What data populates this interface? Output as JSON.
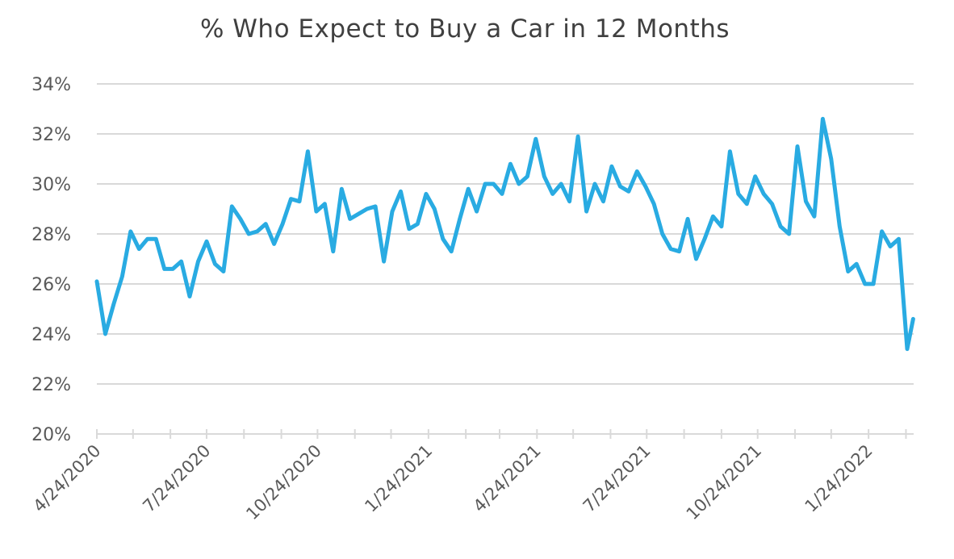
{
  "chart_data": {
    "type": "line",
    "title": "% Who Expect to Buy a Car in 12 Months",
    "xlabel": "",
    "ylabel": "",
    "ylim": [
      20,
      34
    ],
    "y_ticks": [
      "20%",
      "22%",
      "24%",
      "26%",
      "28%",
      "30%",
      "32%",
      "34%"
    ],
    "y_tick_values": [
      20,
      22,
      24,
      26,
      28,
      30,
      32,
      34
    ],
    "x_ticks": [
      "4/24/2020",
      "7/24/2020",
      "10/24/2020",
      "1/24/2021",
      "4/24/2021",
      "7/24/2021",
      "10/24/2021",
      "1/24/2022"
    ],
    "grid": "horizontal",
    "line_color": "#29abe2",
    "series": [
      {
        "x": [
          "4/24/2020",
          "5/1/2020",
          "5/8/2020",
          "5/15/2020",
          "5/22/2020",
          "5/29/2020",
          "6/5/2020",
          "6/12/2020",
          "6/19/2020",
          "6/26/2020",
          "7/3/2020",
          "7/10/2020",
          "7/17/2020",
          "7/24/2020",
          "7/31/2020",
          "8/7/2020",
          "8/14/2020",
          "8/21/2020",
          "8/28/2020",
          "9/4/2020",
          "9/11/2020",
          "9/18/2020",
          "9/25/2020",
          "10/2/2020",
          "10/9/2020",
          "10/16/2020",
          "10/23/2020",
          "10/30/2020",
          "11/6/2020",
          "11/13/2020",
          "11/20/2020",
          "11/27/2020",
          "12/4/2020",
          "12/11/2020",
          "12/18/2020",
          "12/25/2020",
          "1/1/2021",
          "1/8/2021",
          "1/15/2021",
          "1/22/2021",
          "1/29/2021",
          "2/5/2021",
          "2/12/2021",
          "2/19/2021",
          "2/26/2021",
          "3/5/2021",
          "3/12/2021",
          "3/19/2021",
          "3/26/2021",
          "4/2/2021",
          "4/9/2021",
          "4/16/2021",
          "4/23/2021",
          "4/30/2021",
          "5/7/2021",
          "5/14/2021",
          "5/21/2021",
          "5/28/2021",
          "6/4/2021",
          "6/11/2021",
          "6/18/2021",
          "6/25/2021",
          "7/2/2021",
          "7/9/2021",
          "7/16/2021",
          "7/23/2021",
          "7/30/2021",
          "8/6/2021",
          "8/13/2021",
          "8/20/2021",
          "8/27/2021",
          "9/3/2021",
          "9/10/2021",
          "9/17/2021",
          "9/24/2021",
          "10/1/2021",
          "10/8/2021",
          "10/15/2021",
          "10/22/2021",
          "10/29/2021",
          "11/5/2021",
          "11/12/2021",
          "11/19/2021",
          "11/26/2021",
          "12/3/2021",
          "12/10/2021",
          "12/17/2021",
          "12/24/2021",
          "12/31/2021",
          "1/7/2022",
          "1/14/2022",
          "1/21/2022",
          "1/28/2022",
          "2/4/2022",
          "2/11/2022",
          "2/18/2022",
          "2/25/2022",
          "3/2/2022"
        ],
        "values": [
          26.1,
          24.0,
          25.2,
          26.3,
          28.1,
          27.4,
          27.8,
          27.8,
          26.6,
          26.6,
          26.9,
          25.5,
          26.9,
          27.7,
          26.8,
          26.5,
          29.1,
          28.6,
          28.0,
          28.1,
          28.4,
          27.6,
          28.4,
          29.4,
          29.3,
          31.3,
          28.9,
          29.2,
          27.3,
          29.8,
          28.6,
          28.8,
          29.0,
          29.1,
          26.9,
          28.9,
          29.7,
          28.2,
          28.4,
          29.6,
          29.0,
          27.8,
          27.3,
          28.6,
          29.8,
          28.9,
          30.0,
          30.0,
          29.6,
          30.8,
          30.0,
          30.3,
          31.8,
          30.3,
          29.6,
          30.0,
          29.3,
          31.9,
          28.9,
          30.0,
          29.3,
          30.7,
          29.9,
          29.7,
          30.5,
          29.9,
          29.2,
          28.0,
          27.4,
          27.3,
          28.6,
          27.0,
          27.8,
          28.7,
          28.3,
          31.3,
          29.6,
          29.2,
          30.3,
          29.6,
          29.2,
          28.3,
          28.0,
          31.5,
          29.3,
          28.7,
          32.6,
          31.0,
          28.3,
          26.5,
          26.8,
          26.0,
          26.0,
          28.1,
          27.5,
          27.8,
          23.4,
          24.6
        ]
      }
    ]
  }
}
